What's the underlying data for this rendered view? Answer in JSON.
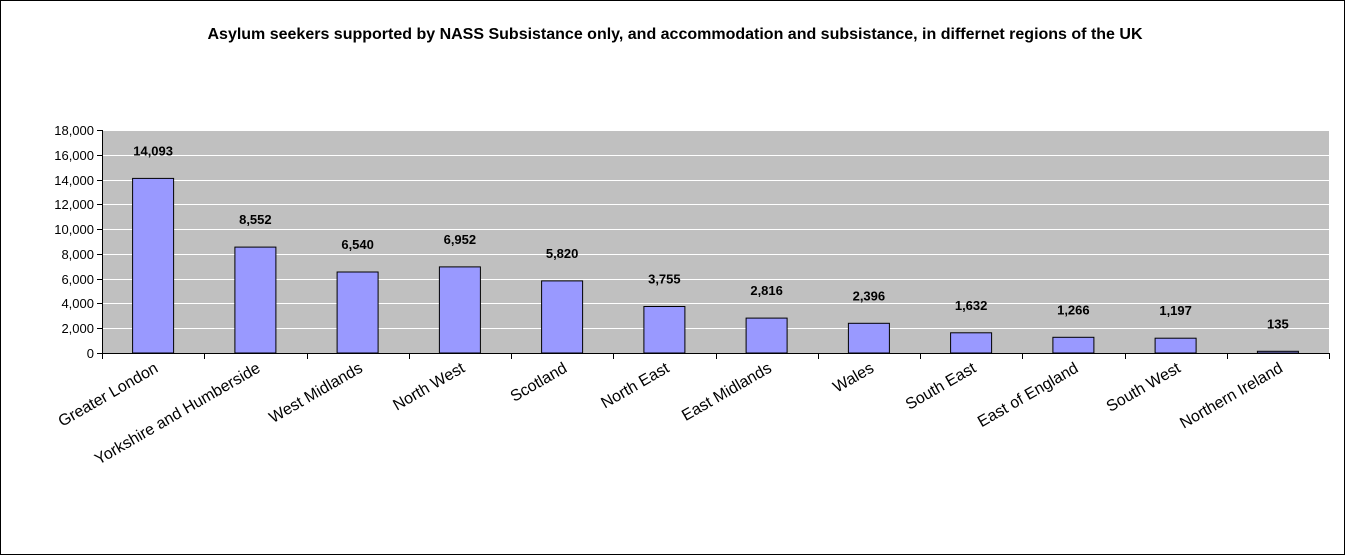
{
  "chart_data": {
    "type": "bar",
    "title": "Asylum seekers supported by NASS Subsistance only, and accommodation and subsistance, in differnet regions of the UK",
    "categories": [
      "Greater London",
      "Yorkshire and Humberside",
      "West Midlands",
      "North West",
      "Scotland",
      "North East",
      "East Midlands",
      "Wales",
      "South East",
      "East of England",
      "South West",
      "Northern Ireland"
    ],
    "values": [
      14093,
      8552,
      6540,
      6952,
      5820,
      3755,
      2816,
      2396,
      1632,
      1266,
      1197,
      135
    ],
    "data_labels": [
      "14,093",
      "8,552",
      "6,540",
      "6,952",
      "5,820",
      "3,755",
      "2,816",
      "2,396",
      "1,632",
      "1,266",
      "1,197",
      "135"
    ],
    "ylim": [
      0,
      18000
    ],
    "yticks": [
      0,
      2000,
      4000,
      6000,
      8000,
      10000,
      12000,
      14000,
      16000,
      18000
    ],
    "ytick_labels": [
      "0",
      "2,000",
      "4,000",
      "6,000",
      "8,000",
      "10,000",
      "12,000",
      "14,000",
      "16,000",
      "18,000"
    ],
    "xlabel": "",
    "ylabel": "",
    "grid": true,
    "legend": "none",
    "colors": {
      "bar_fill": "#9999FF",
      "bar_stroke": "#000000",
      "plot_background": "#C0C0C0",
      "gridline": "#FFFFFF"
    }
  }
}
